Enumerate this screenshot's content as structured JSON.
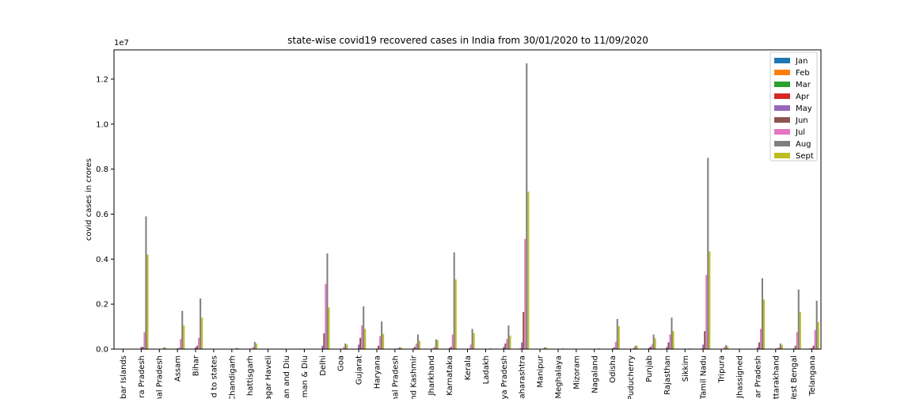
{
  "chart_data": {
    "type": "bar",
    "title": "state-wise covid19 recovered cases in India from 30/01/2020 to 11/09/2020",
    "xlabel": "",
    "ylabel": "covid cases in crores",
    "offset_text": "1e7",
    "ylim": [
      0,
      13300000
    ],
    "yticks": [
      0,
      2000000,
      4000000,
      6000000,
      8000000,
      10000000,
      12000000
    ],
    "ytick_labels": [
      "0.0",
      "0.2",
      "0.4",
      "0.6",
      "0.8",
      "1.0",
      "1.2"
    ],
    "legend_position": "top-right",
    "grid": false,
    "categories": [
      "bar Islands",
      "ra Pradesh",
      "hal Pradesh",
      "Assam",
      "Bihar",
      "d to states",
      "Chandigarh",
      "hattisgarh",
      "agar Haveli",
      "an and Diu",
      "man & Diu",
      "Delhi",
      "Goa",
      "Gujarat",
      "Haryana",
      "hal Pradesh",
      "nd Kashmir",
      "Jharkhand",
      "Karnataka",
      "Kerala",
      "Ladakh",
      "ya Pradesh",
      "aharashtra",
      "Manipur",
      "Meghalaya",
      "Mizoram",
      "Nagaland",
      "Odisha",
      "Puducherry",
      "Punjab",
      "Rajasthan",
      "Sikkim",
      "Tamil Nadu",
      "Tripura",
      "Jhassigned",
      "ar Pradesh",
      "ttarakhand",
      "West Bengal",
      "Telangana"
    ],
    "series": [
      {
        "name": "Jan",
        "color": "#1f77b4",
        "values": [
          0,
          0,
          0,
          0,
          0,
          0,
          0,
          0,
          0,
          0,
          0,
          0,
          0,
          0,
          0,
          0,
          0,
          0,
          0,
          0,
          0,
          0,
          0,
          0,
          0,
          0,
          0,
          0,
          0,
          0,
          0,
          0,
          0,
          0,
          0,
          0,
          0,
          0,
          0
        ]
      },
      {
        "name": "Feb",
        "color": "#ff7f0e",
        "values": [
          0,
          0,
          0,
          0,
          0,
          0,
          0,
          0,
          0,
          0,
          0,
          0,
          0,
          0,
          0,
          0,
          0,
          0,
          0,
          0,
          0,
          0,
          0,
          0,
          0,
          0,
          0,
          0,
          0,
          0,
          0,
          0,
          0,
          0,
          0,
          0,
          0,
          0,
          0
        ]
      },
      {
        "name": "Mar",
        "color": "#2ca02c",
        "values": [
          0,
          0,
          0,
          0,
          0,
          0,
          0,
          0,
          0,
          0,
          0,
          0,
          0,
          0,
          0,
          0,
          0,
          0,
          0,
          0,
          0,
          0,
          0,
          0,
          0,
          0,
          0,
          0,
          0,
          0,
          0,
          0,
          0,
          0,
          0,
          0,
          0,
          0,
          0
        ]
      },
      {
        "name": "Apr",
        "color": "#d62728",
        "values": [
          0,
          0,
          0,
          0,
          0,
          0,
          0,
          0,
          0,
          0,
          0,
          10000,
          0,
          20000,
          5000,
          0,
          5000,
          0,
          5000,
          5000,
          0,
          20000,
          30000,
          0,
          0,
          0,
          0,
          0,
          0,
          5000,
          20000,
          0,
          30000,
          0,
          0,
          10000,
          0,
          5000,
          30000
        ]
      },
      {
        "name": "May",
        "color": "#9467bd",
        "values": [
          0,
          100000,
          5000,
          30000,
          80000,
          0,
          5000,
          10000,
          0,
          0,
          0,
          150000,
          5000,
          200000,
          20000,
          10000,
          30000,
          10000,
          50000,
          10000,
          5000,
          100000,
          300000,
          0,
          0,
          0,
          0,
          30000,
          5000,
          50000,
          100000,
          0,
          200000,
          5000,
          0,
          80000,
          10000,
          30000,
          50000
        ]
      },
      {
        "name": "Jun",
        "color": "#8c564b",
        "values": [
          0,
          100000,
          10000,
          50000,
          150000,
          0,
          10000,
          30000,
          0,
          0,
          0,
          700000,
          10000,
          500000,
          150000,
          20000,
          100000,
          30000,
          100000,
          30000,
          10000,
          250000,
          1650000,
          10000,
          5000,
          0,
          10000,
          80000,
          10000,
          100000,
          300000,
          5000,
          800000,
          20000,
          0,
          300000,
          40000,
          150000,
          150000
        ]
      },
      {
        "name": "Jul",
        "color": "#e377c2",
        "values": [
          0,
          750000,
          20000,
          450000,
          500000,
          0,
          20000,
          100000,
          10000,
          5000,
          5000,
          2900000,
          100000,
          1050000,
          580000,
          50000,
          250000,
          100000,
          650000,
          200000,
          20000,
          450000,
          4900000,
          30000,
          10000,
          5000,
          20000,
          320000,
          60000,
          200000,
          650000,
          20000,
          3300000,
          100000,
          0,
          900000,
          80000,
          750000,
          850000
        ]
      },
      {
        "name": "Aug",
        "color": "#7f7f7f",
        "values": [
          0,
          5900000,
          80000,
          1700000,
          2250000,
          0,
          50000,
          320000,
          20000,
          5000,
          10000,
          4250000,
          250000,
          1900000,
          1230000,
          80000,
          650000,
          430000,
          4300000,
          900000,
          30000,
          1050000,
          12700000,
          80000,
          30000,
          10000,
          30000,
          1340000,
          150000,
          650000,
          1400000,
          30000,
          8500000,
          180000,
          0,
          3150000,
          250000,
          2650000,
          2150000
        ]
      },
      {
        "name": "Sept",
        "color": "#bcbd22",
        "values": [
          0,
          4200000,
          60000,
          1050000,
          1400000,
          0,
          40000,
          250000,
          20000,
          5000,
          10000,
          1850000,
          200000,
          900000,
          680000,
          60000,
          370000,
          400000,
          3100000,
          720000,
          20000,
          600000,
          7000000,
          80000,
          20000,
          10000,
          20000,
          1020000,
          150000,
          480000,
          800000,
          20000,
          4350000,
          130000,
          0,
          2200000,
          180000,
          1650000,
          1200000
        ]
      }
    ]
  }
}
